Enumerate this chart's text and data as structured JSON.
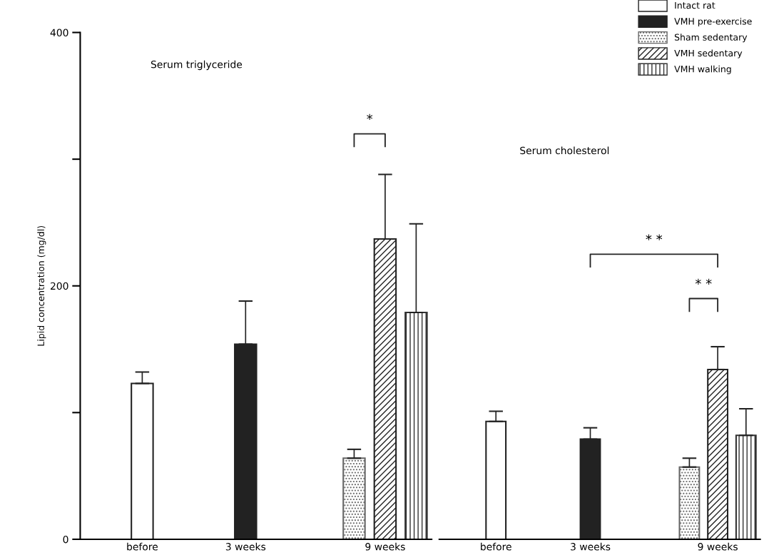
{
  "chart_data": [
    {
      "type": "bar",
      "title": "Serum triglyceride",
      "ylabel": "Lipid concentration (mg/dl)",
      "categories": [
        "before",
        "3 weeks",
        "9 weeks"
      ],
      "series": [
        {
          "color": "#ffffff",
          "values": [
            123,
            null,
            null
          ],
          "errors": [
            [
              123,
              132
            ],
            null,
            null
          ]
        },
        {
          "color": "#222222",
          "values": [
            null,
            154,
            null
          ],
          "errors": [
            null,
            [
              154,
              188
            ],
            null
          ]
        },
        {
          "color": "#666666",
          "values": [
            null,
            null,
            64
          ],
          "errors": [
            null,
            null,
            [
              64,
              71
            ]
          ]
        },
        {
          "color": "#222222",
          "values": [
            null,
            null,
            237
          ],
          "errors": [
            null,
            null,
            [
              237,
              288
            ]
          ]
        },
        {
          "color": "#333333",
          "values": [
            null,
            null,
            179
          ],
          "errors": [
            null,
            null,
            [
              179,
              249
            ]
          ]
        }
      ],
      "ylim": [
        0,
        400
      ],
      "yticks": [
        0,
        {
          "value": 100,
          "label": null
        },
        200,
        {
          "value": 300,
          "label": null
        },
        400
      ],
      "annotations": [
        "*"
      ],
      "legend": false
    },
    {
      "type": "bar",
      "title": "Serum cholesterol",
      "categories": [
        "before",
        "3 weeks",
        "9 weeks"
      ],
      "series": [
        {
          "name": "Intact rat",
          "color": "#ffffff",
          "values": [
            93,
            null,
            null
          ],
          "errors": [
            [
              93,
              101
            ],
            null,
            null
          ]
        },
        {
          "name": "VMH pre-exercise",
          "color": "#222222",
          "values": [
            null,
            79,
            null
          ],
          "errors": [
            null,
            [
              79,
              88
            ],
            null
          ]
        },
        {
          "name": "Sham sedentary",
          "color": "#666666",
          "values": [
            null,
            null,
            57
          ],
          "errors": [
            null,
            null,
            [
              57,
              64
            ]
          ]
        },
        {
          "name": "VMH sedentary",
          "color": "#222222",
          "values": [
            null,
            null,
            134
          ],
          "errors": [
            null,
            null,
            [
              134,
              152
            ]
          ]
        },
        {
          "name": "VMH walking",
          "color": "#333333",
          "values": [
            null,
            null,
            82
          ],
          "errors": [
            null,
            null,
            [
              82,
              103
            ]
          ]
        }
      ],
      "ylim": [
        0,
        400
      ],
      "tick_labels": "x",
      "annotations": [
        "* *",
        "* *"
      ],
      "legend": "top right"
    }
  ]
}
